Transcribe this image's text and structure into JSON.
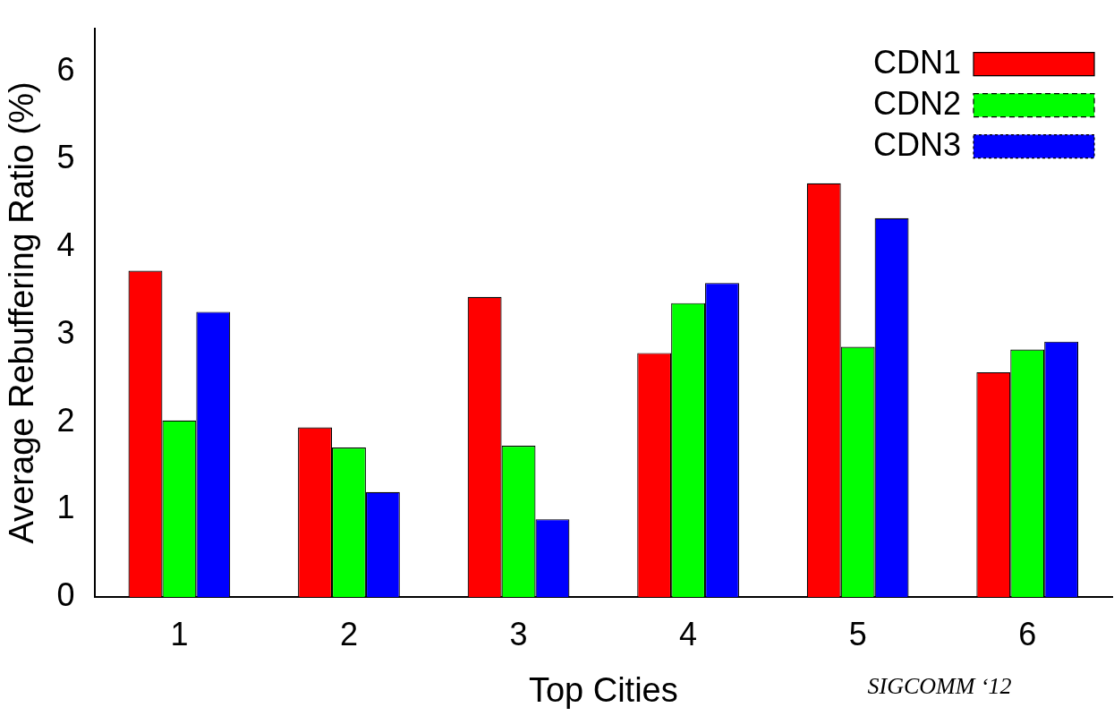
{
  "chart_data": {
    "type": "bar",
    "xlabel": "Top Cities",
    "ylabel": "Average Rebuffering Ratio (%)",
    "categories": [
      "1",
      "2",
      "3",
      "4",
      "5",
      "6"
    ],
    "series": [
      {
        "name": "CDN1",
        "color": "#ff0000",
        "values": [
          3.73,
          1.94,
          3.43,
          2.79,
          4.73,
          2.57
        ]
      },
      {
        "name": "CDN2",
        "color": "#00ff00",
        "values": [
          2.02,
          1.71,
          1.73,
          3.36,
          2.86,
          2.83
        ]
      },
      {
        "name": "CDN3",
        "color": "#0000ff",
        "values": [
          3.26,
          1.2,
          0.89,
          3.59,
          4.33,
          2.92
        ]
      }
    ],
    "ylim": [
      0,
      6.5
    ],
    "yticks": [
      0,
      1,
      2,
      3,
      4,
      5,
      6
    ],
    "grid": false,
    "legend": "top right",
    "annotations": [
      "SIGCOMM ‘12"
    ]
  }
}
